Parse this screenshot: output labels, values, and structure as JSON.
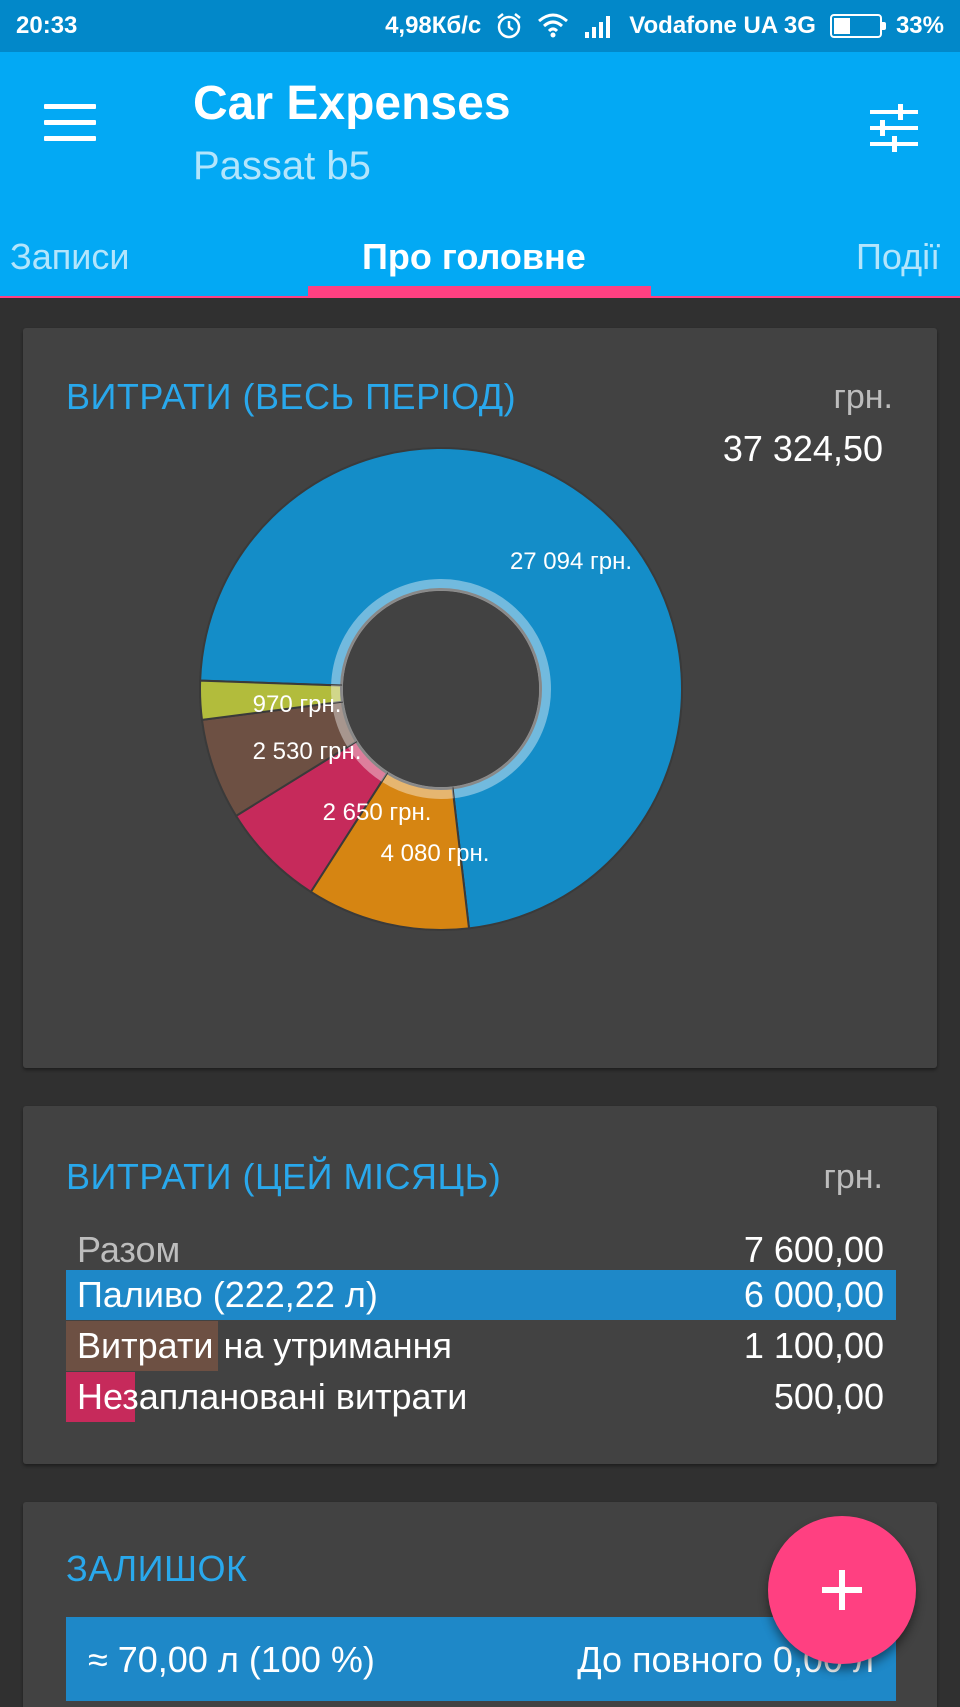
{
  "status_bar": {
    "time": "20:33",
    "speed": "4,98Кб/с",
    "carrier": "Vodafone UA 3G",
    "battery": "33%",
    "battery_level": 0.33
  },
  "app_bar": {
    "title": "Car Expenses",
    "subtitle": "Passat b5",
    "tabs": [
      {
        "label": "Записи",
        "active": false
      },
      {
        "label": "Про головне",
        "active": true
      },
      {
        "label": "Події",
        "active": false
      }
    ]
  },
  "expenses_all": {
    "title": "ВИТРАТИ (ВЕСЬ ПЕРІОД)",
    "unit": "грн.",
    "total": "37 324,50",
    "chart_data": {
      "type": "pie",
      "slices": [
        {
          "label": "27 094 грн.",
          "value": 27094,
          "color": "#148dc8"
        },
        {
          "label": "4 080 грн.",
          "value": 4080,
          "color": "#d68512"
        },
        {
          "label": "2 650 грн.",
          "value": 2650,
          "color": "#c62a5b"
        },
        {
          "label": "2 530 грн.",
          "value": 2530,
          "color": "#6d5043"
        },
        {
          "label": "970 грн.",
          "value": 970,
          "color": "#b2bc3c"
        }
      ]
    }
  },
  "expenses_month": {
    "title": "ВИТРАТИ (ЦЕЙ МІСЯЦЬ)",
    "unit": "грн.",
    "rows": [
      {
        "label": "Разом",
        "value": "7 600,00",
        "share": 0,
        "color": ""
      },
      {
        "label": "Паливо (222,22 л)",
        "value": "6 000,00",
        "share": 1.0,
        "color": "#1e88c8"
      },
      {
        "label": "Витрати на утримання",
        "value": "1 100,00",
        "share": 0.1833,
        "color": "#6d5043"
      },
      {
        "label": "Незаплановані витрати",
        "value": "500,00",
        "share": 0.0833,
        "color": "#c62a5b"
      }
    ]
  },
  "balance": {
    "title": "ЗАЛИШОК",
    "left": "≈ 70,00 л (100 %)",
    "right": "До повного 0,00 л"
  },
  "fab": {
    "icon": "plus-icon"
  }
}
